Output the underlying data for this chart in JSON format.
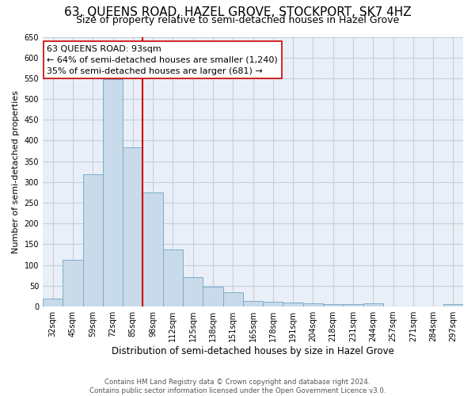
{
  "title": "63, QUEENS ROAD, HAZEL GROVE, STOCKPORT, SK7 4HZ",
  "subtitle": "Size of property relative to semi-detached houses in Hazel Grove",
  "xlabel": "Distribution of semi-detached houses by size in Hazel Grove",
  "ylabel": "Number of semi-detached properties",
  "footer1": "Contains HM Land Registry data © Crown copyright and database right 2024.",
  "footer2": "Contains public sector information licensed under the Open Government Licence v3.0.",
  "categories": [
    "32sqm",
    "45sqm",
    "59sqm",
    "72sqm",
    "85sqm",
    "98sqm",
    "112sqm",
    "125sqm",
    "138sqm",
    "151sqm",
    "165sqm",
    "178sqm",
    "191sqm",
    "204sqm",
    "218sqm",
    "231sqm",
    "244sqm",
    "257sqm",
    "271sqm",
    "284sqm",
    "297sqm"
  ],
  "values": [
    20,
    112,
    318,
    547,
    383,
    275,
    137,
    70,
    47,
    35,
    14,
    12,
    9,
    8,
    5,
    5,
    8,
    0,
    0,
    0,
    5
  ],
  "bar_color": "#c9daea",
  "bar_edge_color": "#7aaec8",
  "bar_width": 1.0,
  "property_label": "63 QUEENS ROAD: 93sqm",
  "pct_smaller": 64,
  "n_smaller": 1240,
  "pct_larger": 35,
  "n_larger": 681,
  "vline_color": "#cc0000",
  "ylim": [
    0,
    650
  ],
  "yticks": [
    0,
    50,
    100,
    150,
    200,
    250,
    300,
    350,
    400,
    450,
    500,
    550,
    600,
    650
  ],
  "grid_color": "#c5cedd",
  "background_color": "#eaeff7",
  "title_fontsize": 11,
  "subtitle_fontsize": 9,
  "axis_label_fontsize": 8,
  "tick_fontsize": 7,
  "annotation_fontsize": 8
}
